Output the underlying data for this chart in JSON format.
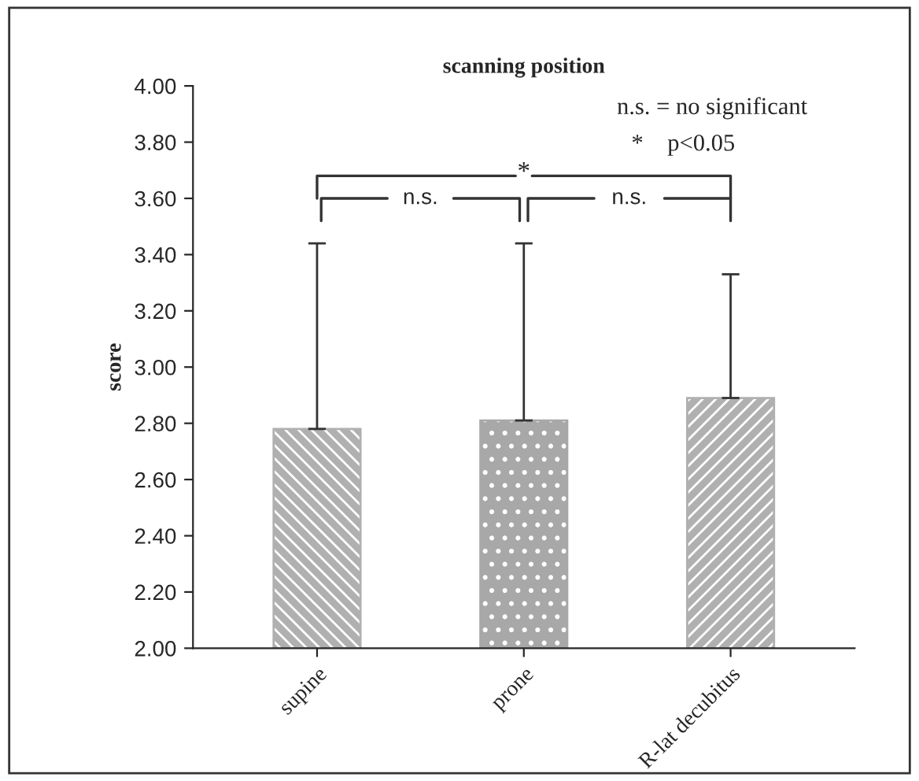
{
  "chart_data": {
    "type": "bar",
    "title": "scanning position",
    "ylabel": "score",
    "categories": [
      "supine",
      "prone",
      "R-lat decubitus"
    ],
    "values": [
      2.78,
      2.81,
      2.89
    ],
    "colors": [
      "#b0b0b0",
      "#a8a8a8",
      "#b0b0b0"
    ],
    "errors": [
      [
        2.78,
        3.44
      ],
      [
        2.81,
        3.44
      ],
      [
        2.89,
        3.33
      ]
    ],
    "ylim": [
      2.0,
      4.0
    ],
    "yticks": [
      {
        "value": 2.0,
        "label": "2.00"
      },
      {
        "value": 2.2,
        "label": "2.20"
      },
      {
        "value": 2.4,
        "label": "2.40"
      },
      {
        "value": 2.6,
        "label": "2.60"
      },
      {
        "value": 2.8,
        "label": "2.80"
      },
      {
        "value": 3.0,
        "label": "3.00"
      },
      {
        "value": 3.2,
        "label": "3.20"
      },
      {
        "value": 3.4,
        "label": "3.40"
      },
      {
        "value": 3.6,
        "label": "3.60"
      },
      {
        "value": 3.8,
        "label": "3.80"
      },
      {
        "value": 4.0,
        "label": "4.00"
      }
    ],
    "annotations": [
      "n.s. = no significant",
      "*    p<0.05",
      "n.s.",
      "n.s.",
      "*"
    ],
    "grid": false,
    "legend": false
  }
}
